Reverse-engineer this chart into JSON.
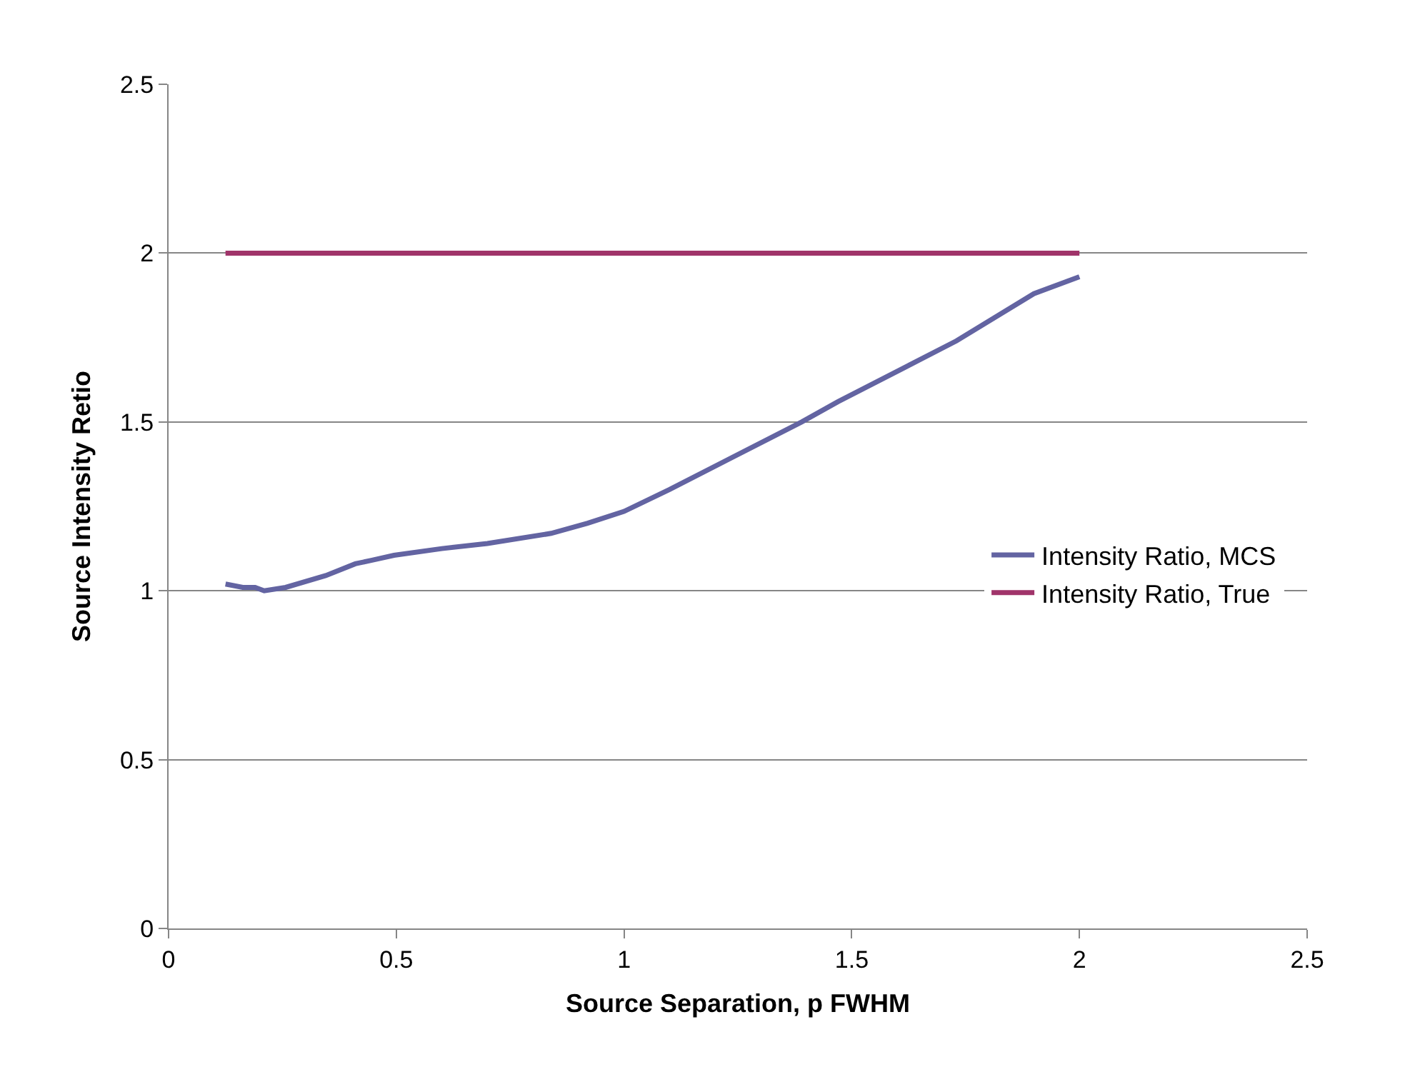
{
  "chart_data": {
    "type": "line",
    "xlabel": "Source Separation, p FWHM",
    "ylabel": "Source Intensity Retio",
    "xlim": [
      0,
      2.5
    ],
    "xticks": [
      0,
      0.5,
      1,
      1.5,
      2,
      2.5
    ],
    "ylim": [
      0,
      2.5
    ],
    "yticks": [
      0,
      0.5,
      1,
      1.5,
      2,
      2.5
    ],
    "grid": "y",
    "legend": "right",
    "marker": "none",
    "line_style": "solid",
    "series": [
      {
        "name": "Intensity Ratio, MCS",
        "color": "#6364a2",
        "x": [
          0.125,
          0.163,
          0.19,
          0.21,
          0.257,
          0.345,
          0.41,
          0.445,
          0.495,
          0.6,
          0.7,
          0.84,
          0.92,
          1.0,
          1.1,
          1.39,
          1.47,
          1.73,
          1.9,
          2.0
        ],
        "values": [
          1.02,
          1.01,
          1.01,
          1.0,
          1.01,
          1.045,
          1.08,
          1.09,
          1.105,
          1.125,
          1.14,
          1.17,
          1.2,
          1.235,
          1.3,
          1.5,
          1.56,
          1.74,
          1.88,
          1.93
        ]
      },
      {
        "name": "Intensity Ratio, True",
        "color": "#a0346a",
        "x": [
          0.125,
          2.0
        ],
        "values": [
          2,
          2
        ]
      }
    ]
  }
}
